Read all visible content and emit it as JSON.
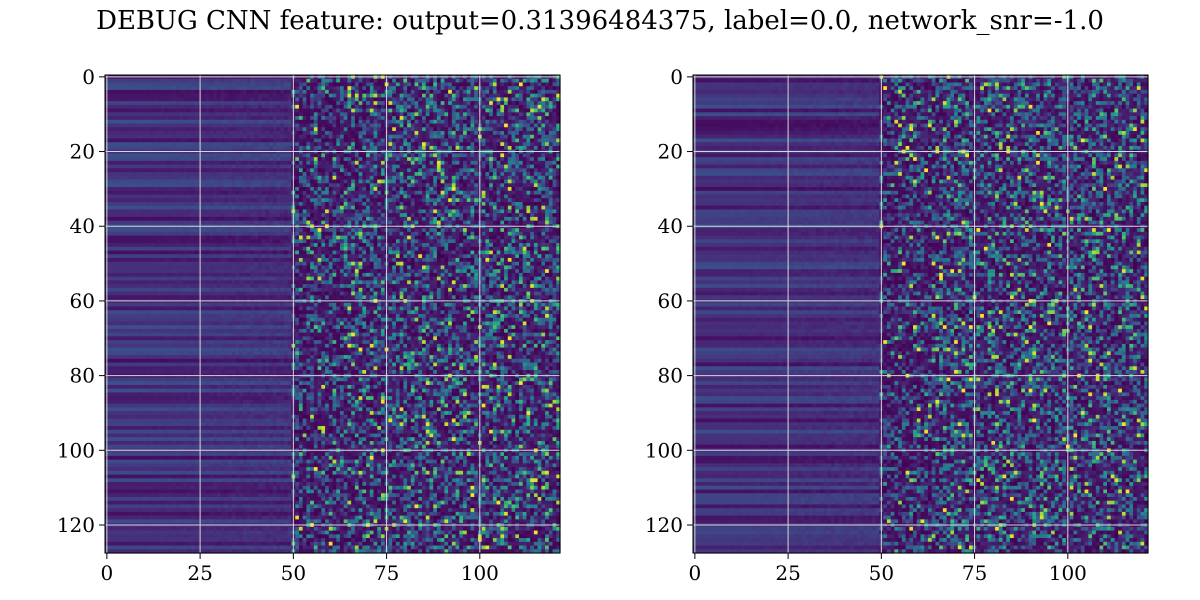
{
  "suptitle": "DEBUG CNN feature: output=0.31396484375, label=0.0, network_snr=-1.0",
  "chart_data": [
    {
      "type": "heatmap",
      "colormap": "viridis",
      "rows": 128,
      "cols": 122,
      "xlim": [
        -0.5,
        121.5
      ],
      "ylim": [
        127.5,
        -0.5
      ],
      "xticks": [
        0,
        25,
        50,
        75,
        100
      ],
      "yticks": [
        0,
        20,
        40,
        60,
        80,
        100,
        120
      ],
      "xtick_labels": [
        "0",
        "25",
        "50",
        "75",
        "100"
      ],
      "ytick_labels": [
        "0",
        "20",
        "40",
        "60",
        "80",
        "100",
        "120"
      ],
      "grid": true,
      "description_values": {
        "structure": "left columns smooth low-intensity banded rows; right columns noisy with sparse bright pixels",
        "smooth_until_col": 50,
        "max_value": 1.0,
        "min_value": 0.0
      }
    },
    {
      "type": "heatmap",
      "colormap": "viridis",
      "rows": 128,
      "cols": 122,
      "xlim": [
        -0.5,
        121.5
      ],
      "ylim": [
        127.5,
        -0.5
      ],
      "xticks": [
        0,
        25,
        50,
        75,
        100
      ],
      "yticks": [
        0,
        20,
        40,
        60,
        80,
        100,
        120
      ],
      "xtick_labels": [
        "0",
        "25",
        "50",
        "75",
        "100"
      ],
      "ytick_labels": [
        "0",
        "20",
        "40",
        "60",
        "80",
        "100",
        "120"
      ],
      "grid": true,
      "description_values": {
        "structure": "left columns smooth low-intensity banded rows; right columns noisy with sparse bright pixels",
        "smooth_until_col": 50,
        "max_value": 1.0,
        "min_value": 0.0
      }
    }
  ]
}
